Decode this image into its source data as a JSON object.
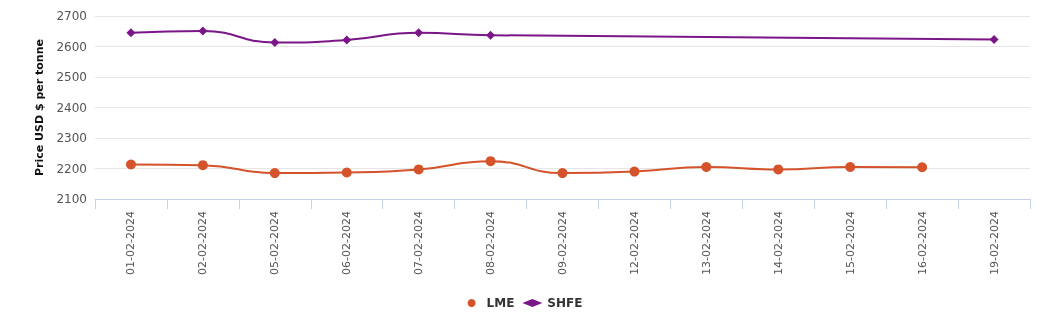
{
  "chart_data": {
    "type": "line",
    "ylabel": "Price USD $ per tonne",
    "categories": [
      "01-02-2024",
      "02-02-2024",
      "05-02-2024",
      "06-02-2024",
      "07-02-2024",
      "08-02-2024",
      "09-02-2024",
      "12-02-2024",
      "13-02-2024",
      "14-02-2024",
      "15-02-2024",
      "16-02-2024",
      "19-02-2024"
    ],
    "series": [
      {
        "name": "LME",
        "color": "#d4532b",
        "marker": "circle",
        "values": [
          2213,
          2211,
          2185,
          2187,
          2197,
          2224,
          2185,
          2190,
          2205,
          2197,
          2205,
          2204,
          null
        ]
      },
      {
        "name": "SHFE",
        "color": "#7b1688",
        "marker": "diamond",
        "values": [
          2645,
          2651,
          2613,
          2621,
          2645,
          2637,
          null,
          null,
          null,
          null,
          null,
          null,
          2623
        ]
      }
    ],
    "ylim": [
      2100,
      2700
    ],
    "yticks": [
      2100,
      2200,
      2300,
      2400,
      2500,
      2600,
      2700
    ],
    "grid": "y",
    "legend": "bottom"
  }
}
